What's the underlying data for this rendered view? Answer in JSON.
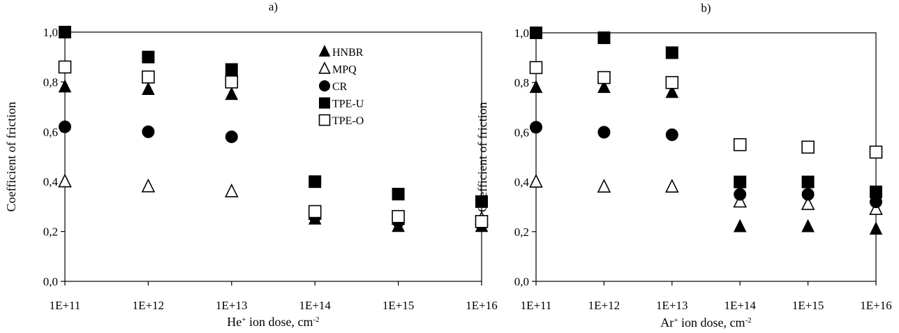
{
  "colors": {
    "ink": "#000000",
    "background": "#ffffff"
  },
  "chart_data": [
    {
      "type": "scatter",
      "panel_label": "a)",
      "xlabel": {
        "base": "He",
        "sup1": "+",
        "middle": " ion dose, cm",
        "sup2": "-2"
      },
      "ylabel": "Coefficient of friction",
      "categories": [
        "1E+11",
        "1E+12",
        "1E+13",
        "1E+14",
        "1E+15",
        "1E+16"
      ],
      "yticks": [
        "0,0",
        "0,2",
        "0,4",
        "0,6",
        "0,8",
        "1,0"
      ],
      "ylim": [
        0,
        1
      ],
      "grid": false,
      "legend_position": "top-right",
      "series": [
        {
          "name": "HNBR",
          "marker": "triangle-filled",
          "values": [
            0.78,
            0.77,
            0.75,
            0.25,
            0.22,
            0.22
          ]
        },
        {
          "name": "MPQ",
          "marker": "triangle-open",
          "values": [
            0.4,
            0.38,
            0.36,
            0.27,
            0.25,
            0.25
          ]
        },
        {
          "name": "CR",
          "marker": "circle-filled",
          "values": [
            0.62,
            0.6,
            0.58,
            0.26,
            0.24,
            0.23
          ]
        },
        {
          "name": "TPE-U",
          "marker": "square-filled",
          "values": [
            1.0,
            0.9,
            0.85,
            0.4,
            0.35,
            0.32
          ]
        },
        {
          "name": "TPE-O",
          "marker": "square-open",
          "values": [
            0.86,
            0.82,
            0.8,
            0.28,
            0.26,
            0.24
          ]
        }
      ]
    },
    {
      "type": "scatter",
      "panel_label": "b)",
      "xlabel": {
        "base": "Ar",
        "sup1": "+",
        "middle": " ion dose, cm",
        "sup2": "-2"
      },
      "ylabel": "Coefficient of friction",
      "categories": [
        "1E+11",
        "1E+12",
        "1E+13",
        "1E+14",
        "1E+15",
        "1E+16"
      ],
      "yticks": [
        "0,0",
        "0,2",
        "0,4",
        "0,6",
        "0,8",
        "1,0"
      ],
      "ylim": [
        0,
        1
      ],
      "grid": false,
      "series": [
        {
          "marker": "triangle-filled",
          "values": [
            0.78,
            0.78,
            0.76,
            0.22,
            0.22,
            0.21
          ]
        },
        {
          "marker": "triangle-open",
          "values": [
            0.4,
            0.38,
            0.38,
            0.32,
            0.31,
            0.29
          ]
        },
        {
          "marker": "circle-filled",
          "values": [
            0.62,
            0.6,
            0.59,
            0.35,
            0.35,
            0.32
          ]
        },
        {
          "marker": "square-filled",
          "values": [
            1.0,
            0.98,
            0.92,
            0.4,
            0.4,
            0.36
          ]
        },
        {
          "marker": "square-open",
          "values": [
            0.86,
            0.82,
            0.8,
            0.55,
            0.54,
            0.52
          ]
        }
      ]
    }
  ]
}
